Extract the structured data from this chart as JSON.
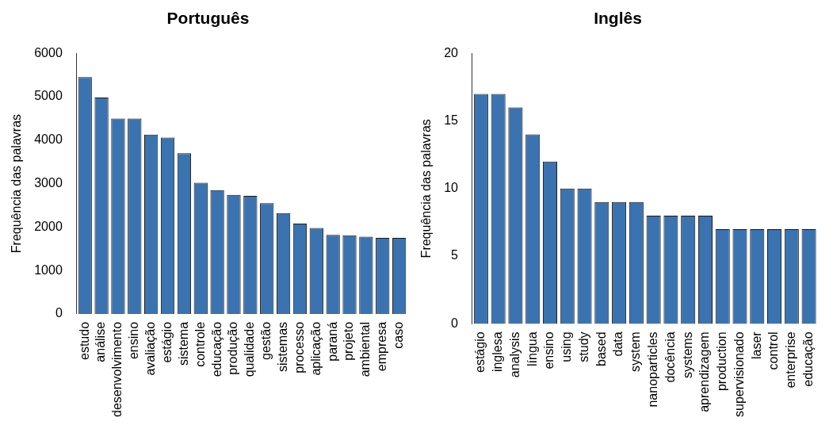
{
  "chart_data": [
    {
      "type": "bar",
      "title": "Português",
      "ylabel": "Frequência das palavras",
      "color": "#3a73b0",
      "categories": [
        "estudo",
        "análise",
        "desenvolvimento",
        "ensino",
        "avaliação",
        "estágio",
        "sistema",
        "controle",
        "educação",
        "produção",
        "qualidade",
        "gestão",
        "sistemas",
        "processo",
        "aplicação",
        "paraná",
        "projeto",
        "ambiental",
        "empresa",
        "caso"
      ],
      "values": [
        5450,
        4980,
        4500,
        4500,
        4130,
        4060,
        3700,
        3020,
        2850,
        2740,
        2720,
        2550,
        2320,
        2080,
        1980,
        1820,
        1810,
        1780,
        1750,
        1750
      ],
      "ylim": [
        0,
        6000
      ],
      "yticks": [
        0,
        1000,
        2000,
        3000,
        4000,
        5000,
        6000
      ],
      "grid": false,
      "legend": false
    },
    {
      "type": "bar",
      "title": "Inglês",
      "ylabel": "Frequência das palavras",
      "color": "#3a73b0",
      "categories": [
        "estágio",
        "inglesa",
        "analysis",
        "língua",
        "ensino",
        "using",
        "study",
        "based",
        "data",
        "system",
        "nanoparticles",
        "docência",
        "systems",
        "aprendizagem",
        "production",
        "supervisionado",
        "laser",
        "control",
        "enterprise",
        "educação"
      ],
      "values": [
        17,
        17,
        16,
        14,
        12,
        10,
        10,
        9,
        9,
        9,
        8,
        8,
        8,
        8,
        7,
        7,
        7,
        7,
        7,
        7
      ],
      "ylim": [
        0,
        20
      ],
      "yticks": [
        0,
        5,
        10,
        15,
        20
      ],
      "grid": false,
      "legend": false
    }
  ]
}
